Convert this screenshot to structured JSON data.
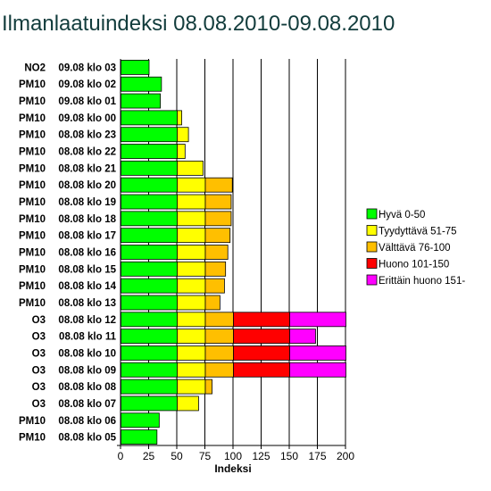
{
  "title": "Ilmanlaatuindeksi 08.08.2010-09.08.2010",
  "chart_data": {
    "type": "bar",
    "orientation": "horizontal",
    "stacked": true,
    "title": "Ilmanlaatuindeksi 08.08.2010-09.08.2010",
    "xlabel": "Indeksi",
    "ylabel": "",
    "xlim": [
      0,
      200
    ],
    "x_ticks": [
      "0",
      "25",
      "50",
      "75",
      "100",
      "125",
      "150",
      "175",
      "200"
    ],
    "grid": "vertical",
    "legend_position": "right",
    "bands": [
      {
        "name": "Hyvä 0-50",
        "color": "#00ff00",
        "min": 0,
        "max": 50
      },
      {
        "name": "Tyydyttävä 51-75",
        "color": "#ffff00",
        "min": 50,
        "max": 75
      },
      {
        "name": "Välttävä 76-100",
        "color": "#ffbf00",
        "min": 75,
        "max": 100
      },
      {
        "name": "Huono 101-150",
        "color": "#ff0000",
        "min": 100,
        "max": 150
      },
      {
        "name": "Erittäin huono 151-",
        "color": "#ff00ff",
        "min": 150,
        "max": 200
      }
    ],
    "rows": [
      {
        "pollutant": "NO2",
        "time": "09.08 klo 03",
        "value": 25
      },
      {
        "pollutant": "PM10",
        "time": "09.08 klo 02",
        "value": 36
      },
      {
        "pollutant": "PM10",
        "time": "09.08 klo 01",
        "value": 35
      },
      {
        "pollutant": "PM10",
        "time": "09.08 klo 00",
        "value": 54
      },
      {
        "pollutant": "PM10",
        "time": "08.08 klo 23",
        "value": 60
      },
      {
        "pollutant": "PM10",
        "time": "08.08 klo 22",
        "value": 57
      },
      {
        "pollutant": "PM10",
        "time": "08.08 klo 21",
        "value": 73
      },
      {
        "pollutant": "PM10",
        "time": "08.08 klo 20",
        "value": 99
      },
      {
        "pollutant": "PM10",
        "time": "08.08 klo 19",
        "value": 98
      },
      {
        "pollutant": "PM10",
        "time": "08.08 klo 18",
        "value": 98
      },
      {
        "pollutant": "PM10",
        "time": "08.08 klo 17",
        "value": 97
      },
      {
        "pollutant": "PM10",
        "time": "08.08 klo 16",
        "value": 95
      },
      {
        "pollutant": "PM10",
        "time": "08.08 klo 15",
        "value": 93
      },
      {
        "pollutant": "PM10",
        "time": "08.08 klo 14",
        "value": 92
      },
      {
        "pollutant": "PM10",
        "time": "08.08 klo 13",
        "value": 88
      },
      {
        "pollutant": "O3",
        "time": "08.08 klo 12",
        "value": 200
      },
      {
        "pollutant": "O3",
        "time": "08.08 klo 11",
        "value": 173
      },
      {
        "pollutant": "O3",
        "time": "08.08 klo 10",
        "value": 200
      },
      {
        "pollutant": "O3",
        "time": "08.08 klo 09",
        "value": 200
      },
      {
        "pollutant": "O3",
        "time": "08.08 klo 08",
        "value": 81
      },
      {
        "pollutant": "O3",
        "time": "08.08 klo 07",
        "value": 69
      },
      {
        "pollutant": "PM10",
        "time": "08.08 klo 06",
        "value": 34
      },
      {
        "pollutant": "PM10",
        "time": "08.08 klo 05",
        "value": 32
      }
    ]
  }
}
